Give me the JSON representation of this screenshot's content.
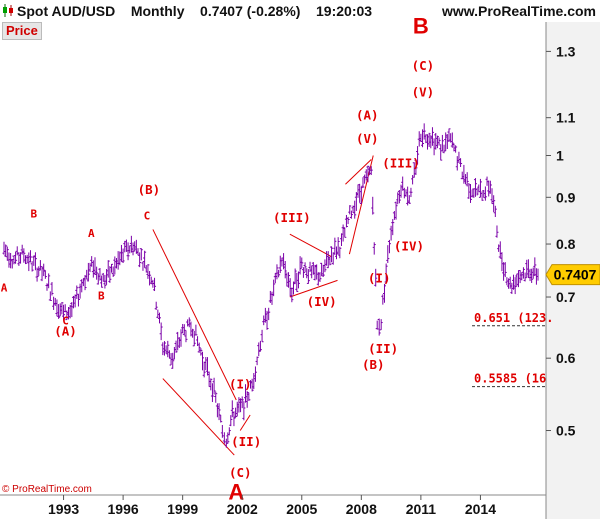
{
  "header": {
    "instrument": "Spot AUD/USD",
    "timeframe": "Monthly",
    "last_value": "0.7407",
    "change": "(-0.28%)",
    "time": "19:20:03",
    "site": "www.ProRealTime.com"
  },
  "price_label": "Price",
  "copyright": "© ProRealTime.com",
  "colors": {
    "bars": "#7a00a8",
    "annotation": "#e00000",
    "price_box": "#ffcc00",
    "axis_panel": "#f2f2f2"
  },
  "chart_data": {
    "type": "bar",
    "title": "",
    "xlabel": "",
    "ylabel": "",
    "x_ticks": [
      "1993",
      "1996",
      "1999",
      "2002",
      "2005",
      "2008",
      "2011",
      "2014"
    ],
    "y_ticks": [
      "1.3",
      "1.1",
      "1",
      "0.9",
      "0.8",
      "0.7",
      "0.6",
      "0.5"
    ],
    "y_scale": "log",
    "xlim": [
      1990.0,
      2016.9
    ],
    "ylim": [
      0.425,
      1.4
    ],
    "grid": false,
    "current_price": "0.7407",
    "series": [
      {
        "x": [
          1990.0,
          1990.5,
          1991.0,
          1991.5,
          1992.0,
          1992.5,
          1993.0,
          1993.5,
          1994.0,
          1994.5,
          1995.0,
          1995.5,
          1996.0,
          1996.5,
          1997.0,
          1997.5,
          1998.0,
          1998.5,
          1999.0,
          1999.5,
          2000.0,
          2000.5,
          2001.0,
          2001.2,
          2001.5,
          2002.0,
          2002.5,
          2003.0,
          2003.5,
          2004.0,
          2004.5,
          2005.0,
          2005.5,
          2006.0,
          2006.5,
          2007.0,
          2007.5,
          2008.0,
          2008.5,
          2008.8,
          2009.0,
          2009.5,
          2010.0,
          2010.5,
          2011.0,
          2011.5,
          2012.0,
          2012.5,
          2013.0,
          2013.5,
          2014.0,
          2014.5,
          2015.0,
          2015.5,
          2016.0,
          2016.5,
          2016.9
        ],
        "values": [
          0.79,
          0.77,
          0.78,
          0.76,
          0.74,
          0.7,
          0.67,
          0.68,
          0.73,
          0.76,
          0.73,
          0.75,
          0.78,
          0.8,
          0.77,
          0.73,
          0.62,
          0.6,
          0.64,
          0.65,
          0.6,
          0.56,
          0.5,
          0.49,
          0.52,
          0.53,
          0.56,
          0.64,
          0.7,
          0.77,
          0.71,
          0.76,
          0.74,
          0.74,
          0.78,
          0.8,
          0.87,
          0.92,
          0.96,
          0.65,
          0.66,
          0.83,
          0.93,
          0.9,
          1.06,
          1.05,
          1.02,
          1.04,
          0.97,
          0.92,
          0.91,
          0.93,
          0.78,
          0.72,
          0.74,
          0.75,
          0.7407
        ]
      }
    ],
    "annotations": [
      {
        "text": "A",
        "x": 1990.0,
        "y": 0.71,
        "size": "small"
      },
      {
        "text": "B",
        "x": 1991.5,
        "y": 0.855,
        "size": "small"
      },
      {
        "text": "C",
        "x": 1993.1,
        "y": 0.653,
        "size": "small"
      },
      {
        "text": "(A)",
        "x": 1993.1,
        "y": 0.635,
        "size": "medium"
      },
      {
        "text": "A",
        "x": 1994.4,
        "y": 0.814,
        "size": "small"
      },
      {
        "text": "B",
        "x": 1994.9,
        "y": 0.696,
        "size": "small"
      },
      {
        "text": "(B)",
        "x": 1997.3,
        "y": 0.907,
        "size": "medium"
      },
      {
        "text": "C",
        "x": 1997.2,
        "y": 0.851,
        "size": "small"
      },
      {
        "text": "(III)",
        "x": 2004.5,
        "y": 0.846,
        "size": "medium"
      },
      {
        "text": "(IV)",
        "x": 2006.0,
        "y": 0.684,
        "size": "medium"
      },
      {
        "text": "(I)",
        "x": 2001.9,
        "y": 0.556,
        "size": "medium"
      },
      {
        "text": "(II)",
        "x": 2002.2,
        "y": 0.481,
        "size": "medium"
      },
      {
        "text": "(C)",
        "x": 2001.9,
        "y": 0.445,
        "size": "medium"
      },
      {
        "text": "A",
        "x": 2001.7,
        "y": 0.42,
        "size": "large"
      },
      {
        "text": "(A)",
        "x": 2008.3,
        "y": 1.095,
        "size": "medium"
      },
      {
        "text": "(V)",
        "x": 2008.3,
        "y": 1.032,
        "size": "medium"
      },
      {
        "text": "(III)",
        "x": 2010.0,
        "y": 0.97,
        "size": "medium"
      },
      {
        "text": "(IV)",
        "x": 2010.4,
        "y": 0.787,
        "size": "medium"
      },
      {
        "text": "(I)",
        "x": 2008.9,
        "y": 0.726,
        "size": "medium"
      },
      {
        "text": "(II)",
        "x": 2009.1,
        "y": 0.608,
        "size": "medium"
      },
      {
        "text": "(B)",
        "x": 2008.6,
        "y": 0.584,
        "size": "medium"
      },
      {
        "text": "B",
        "x": 2011.0,
        "y": 1.36,
        "size": "large"
      },
      {
        "text": "(C)",
        "x": 2011.1,
        "y": 1.24,
        "size": "medium"
      },
      {
        "text": "(V)",
        "x": 2011.1,
        "y": 1.16,
        "size": "medium"
      }
    ],
    "levels": [
      {
        "label": "0.651 (123.",
        "value": 0.651
      },
      {
        "label": "0.5585 (16",
        "value": 0.5585
      }
    ],
    "trendlines": [
      {
        "x1": 1997.5,
        "y1": 0.83,
        "x2": 2001.7,
        "y2": 0.54
      },
      {
        "x1": 1998.0,
        "y1": 0.57,
        "x2": 2001.6,
        "y2": 0.47
      },
      {
        "x1": 2001.9,
        "y1": 0.5,
        "x2": 2002.4,
        "y2": 0.52
      },
      {
        "x1": 2004.4,
        "y1": 0.82,
        "x2": 2006.5,
        "y2": 0.775
      },
      {
        "x1": 2004.4,
        "y1": 0.7,
        "x2": 2006.8,
        "y2": 0.73
      },
      {
        "x1": 2007.4,
        "y1": 0.78,
        "x2": 2008.6,
        "y2": 1.0
      },
      {
        "x1": 2007.2,
        "y1": 0.93,
        "x2": 2008.5,
        "y2": 0.99
      }
    ]
  }
}
